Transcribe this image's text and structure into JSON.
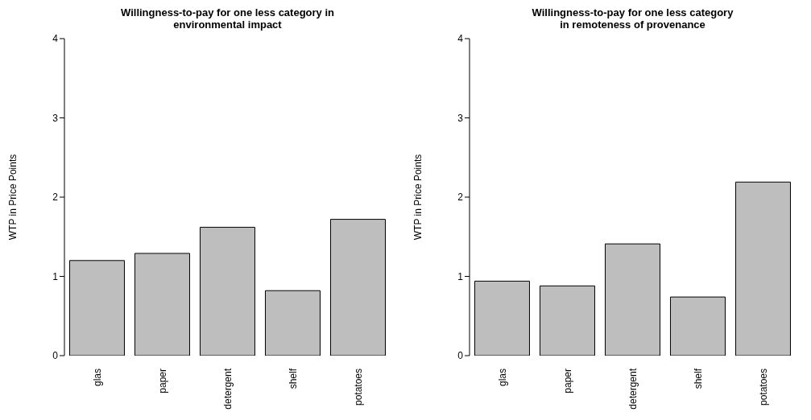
{
  "chart_data": [
    {
      "type": "bar",
      "title": "Willingness-to-pay for one less category in\nenvironmental impact",
      "ylabel": "WTP in Price Points",
      "categories": [
        "glas",
        "paper",
        "detergent",
        "shelf",
        "potatoes"
      ],
      "values": [
        1.2,
        1.29,
        1.62,
        0.82,
        1.72
      ],
      "color": "#bebebe",
      "ylim": [
        0,
        4
      ],
      "yticks": [
        0,
        1,
        2,
        3,
        4
      ]
    },
    {
      "type": "bar",
      "title": "Willingness-to-pay for one less category\nin remoteness of provenance",
      "ylabel": "WTP in Price Points",
      "categories": [
        "glas",
        "paper",
        "detergent",
        "shelf",
        "potatoes"
      ],
      "values": [
        0.94,
        0.88,
        1.41,
        0.74,
        2.19
      ],
      "color": "#bebebe",
      "ylim": [
        0,
        4
      ],
      "yticks": [
        0,
        1,
        2,
        3,
        4
      ]
    }
  ]
}
